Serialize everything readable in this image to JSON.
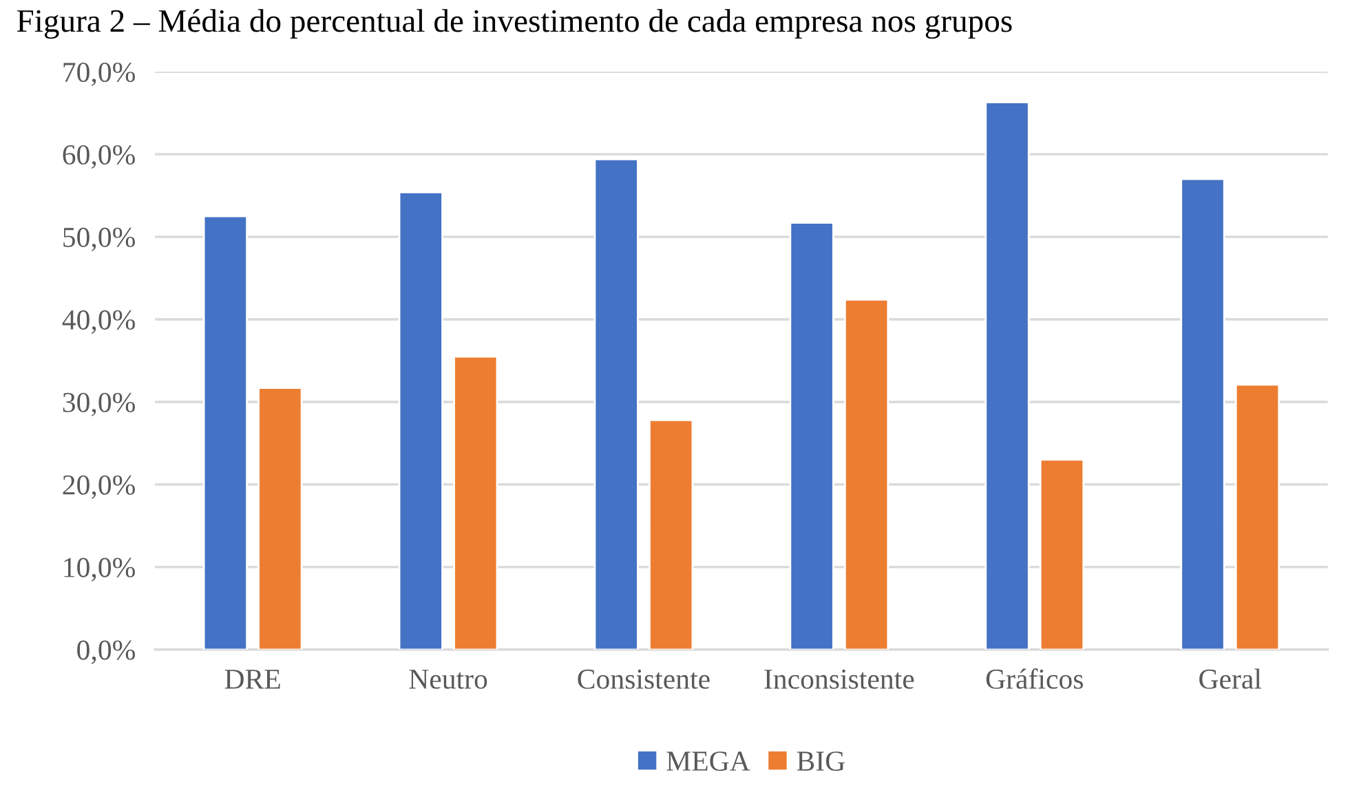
{
  "chart_data": {
    "type": "bar",
    "title": "Figura 2 – Média do percentual de investimento de cada empresa nos grupos",
    "categories": [
      "DRE",
      "Neutro",
      "Consistente",
      "Inconsistente",
      "Gráficos",
      "Geral"
    ],
    "series": [
      {
        "name": "MEGA",
        "color": "#4472c4",
        "values": [
          52.5,
          55.4,
          59.4,
          51.7,
          66.3,
          57.0
        ]
      },
      {
        "name": "BIG",
        "color": "#ed7d31",
        "values": [
          31.7,
          35.5,
          27.8,
          42.4,
          23.0,
          32.1
        ]
      }
    ],
    "ylim": [
      0,
      70
    ],
    "yticks": [
      {
        "value": 0,
        "label": "0,0%"
      },
      {
        "value": 10,
        "label": "10,0%"
      },
      {
        "value": 20,
        "label": "20,0%"
      },
      {
        "value": 30,
        "label": "30,0%"
      },
      {
        "value": 40,
        "label": "40,0%"
      },
      {
        "value": 50,
        "label": "50,0%"
      },
      {
        "value": 60,
        "label": "60,0%"
      },
      {
        "value": 70,
        "label": "70,0%"
      }
    ],
    "grid": "y",
    "legend": "bottom"
  }
}
